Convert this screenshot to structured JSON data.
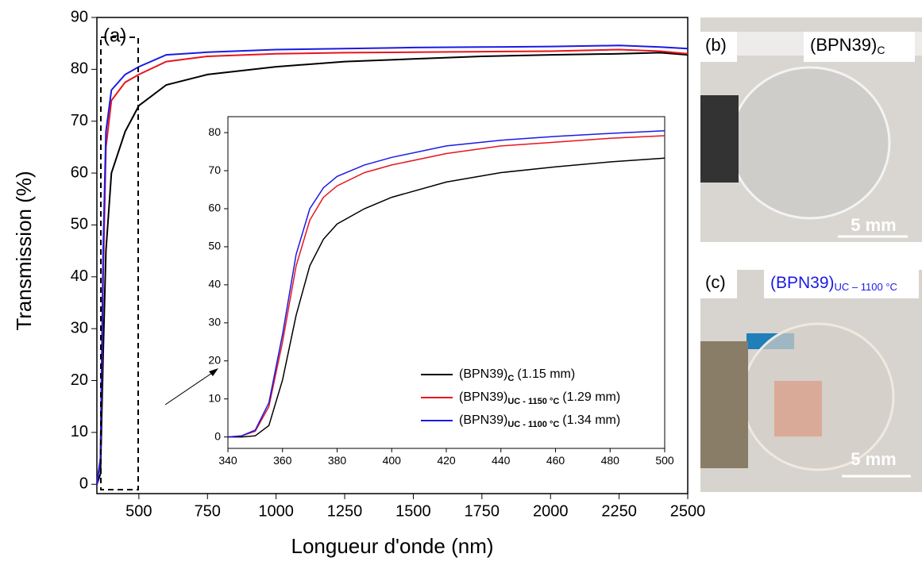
{
  "chart_data": [
    {
      "type": "line",
      "annotation": "(a)",
      "x_label": "Longueur d'onde (nm)",
      "y_label": "Transmission (%)",
      "xlim": [
        347,
        2500
      ],
      "ylim": [
        -1.8,
        90
      ],
      "xticks": [
        500,
        750,
        1000,
        1250,
        1500,
        1750,
        2000,
        2250,
        2500
      ],
      "yticks": [
        0,
        10,
        20,
        30,
        40,
        50,
        60,
        70,
        80,
        90
      ],
      "x": [
        347,
        360,
        370,
        380,
        400,
        450,
        500,
        600,
        750,
        1000,
        1250,
        1500,
        1750,
        2000,
        2250,
        2400,
        2500
      ],
      "series": [
        {
          "color": "#000000",
          "values": [
            0,
            2,
            25,
            45,
            60,
            68,
            73,
            77,
            79,
            80.5,
            81.5,
            82,
            82.5,
            82.8,
            83,
            83.2,
            82.8
          ]
        },
        {
          "color": "#e8141e",
          "values": [
            0,
            5,
            40,
            65,
            74,
            77.5,
            79,
            81.5,
            82.5,
            83,
            83.2,
            83.3,
            83.4,
            83.5,
            83.8,
            83.5,
            83
          ]
        },
        {
          "color": "#1a1ae6",
          "values": [
            0,
            5,
            45,
            68,
            76,
            79,
            80.5,
            82.8,
            83.3,
            83.8,
            84,
            84.2,
            84.3,
            84.4,
            84.6,
            84.3,
            84
          ]
        }
      ]
    },
    {
      "type": "line",
      "xlim": [
        340,
        500
      ],
      "ylim": [
        -3,
        84.2
      ],
      "xticks": [
        340,
        360,
        380,
        400,
        420,
        440,
        460,
        480,
        500
      ],
      "yticks": [
        0,
        10,
        20,
        30,
        40,
        50,
        60,
        70,
        80
      ],
      "x": [
        340,
        345,
        350,
        355,
        360,
        365,
        370,
        375,
        380,
        390,
        400,
        420,
        440,
        460,
        480,
        500
      ],
      "series": [
        {
          "name": "(BPN39)",
          "subscript": "C",
          "thickness": "(1.15 mm)",
          "color": "#000000",
          "values": [
            0,
            0,
            0.3,
            3,
            15,
            32,
            45,
            52,
            56,
            60,
            63,
            67,
            69.5,
            71,
            72.3,
            73.3
          ]
        },
        {
          "name": "(BPN39)",
          "subscript": "UC - 1150 °C",
          "thickness": "(1.29 mm)",
          "color": "#e8141e",
          "values": [
            0,
            0.3,
            1.5,
            8,
            25,
            45,
            57,
            63,
            66,
            69.5,
            71.5,
            74.5,
            76.5,
            77.5,
            78.5,
            79.2
          ]
        },
        {
          "name": "(BPN39)",
          "subscript": "UC - 1100 °C",
          "thickness": "(1.34 mm)",
          "color": "#1a1ae6",
          "values": [
            0,
            0.3,
            1.8,
            9,
            27,
            48,
            60,
            65.5,
            68.5,
            71.5,
            73.5,
            76.5,
            78,
            79,
            79.8,
            80.5
          ]
        }
      ]
    }
  ],
  "panels": {
    "b": {
      "label": "(b)",
      "caption": "(BPN39)",
      "caption_subscript": "C",
      "scale": "5 mm"
    },
    "c": {
      "label": "(c)",
      "caption": "(BPN39)",
      "caption_subscript": "UC – 1100 °C",
      "scale": "5 mm"
    }
  }
}
